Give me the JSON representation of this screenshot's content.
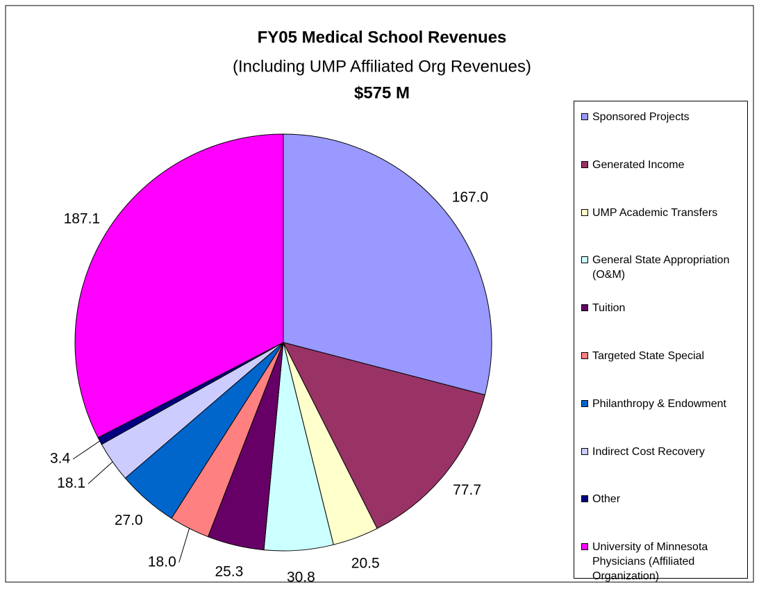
{
  "chart_data": {
    "type": "pie",
    "title": "FY05 Medical School Revenues",
    "subtitle": "(Including UMP Affiliated Org Revenues)",
    "annotation": "$575 M",
    "categories": [
      "Sponsored Projects",
      "Generated Income",
      "UMP Academic Transfers",
      "General State Appropriation  (O&M)",
      "Tuition",
      "Targeted State Special",
      "Philanthropy & Endowment",
      "Indirect Cost Recovery",
      "Other",
      "University of Minnesota Physicians (Affiliated Organization)"
    ],
    "values": [
      167.0,
      77.7,
      20.5,
      30.8,
      25.3,
      18.0,
      27.0,
      18.1,
      3.4,
      187.1
    ],
    "value_labels": [
      "167.0",
      "77.7",
      "20.5",
      "30.8",
      "25.3",
      "18.0",
      "27.0",
      "18.1",
      "3.4",
      "187.1"
    ],
    "colors": [
      "#9999ff",
      "#993366",
      "#ffffcc",
      "#ccffff",
      "#660066",
      "#ff8080",
      "#0066cc",
      "#ccccff",
      "#000080",
      "#ff00ff"
    ],
    "legend": "right"
  }
}
